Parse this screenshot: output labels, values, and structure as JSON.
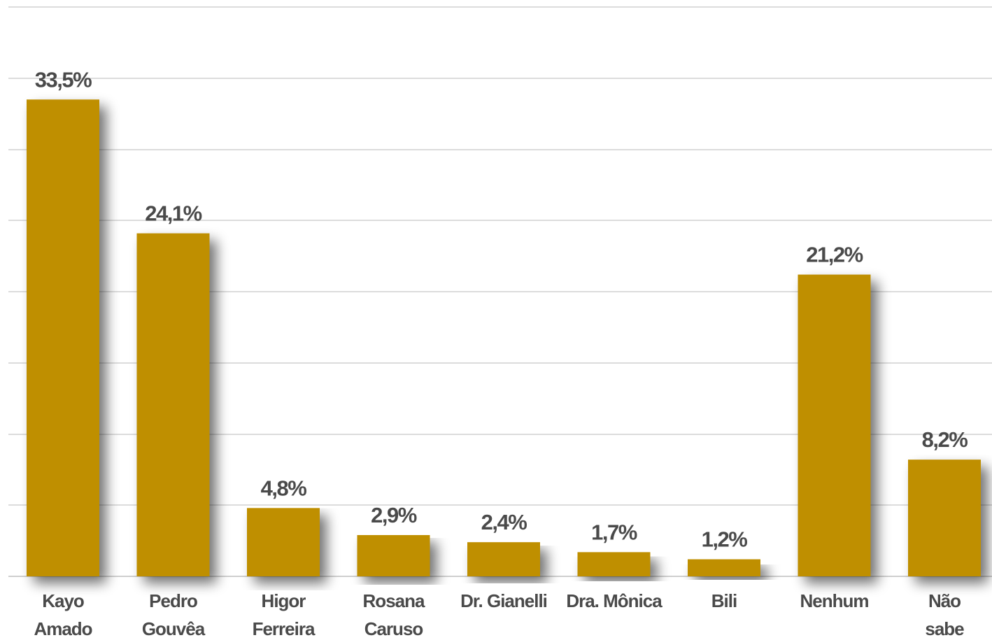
{
  "chart_data": {
    "type": "bar",
    "title": "",
    "xlabel": "",
    "ylabel": "",
    "categories": [
      [
        "Kayo",
        "Amado"
      ],
      [
        "Pedro",
        "Gouvêa"
      ],
      [
        "Higor",
        "Ferreira"
      ],
      [
        "Rosana",
        "Caruso"
      ],
      [
        "Dr. Gianelli"
      ],
      [
        "Dra. Mônica"
      ],
      [
        "Bili"
      ],
      [
        "Nenhum"
      ],
      [
        "Não",
        "sabe"
      ]
    ],
    "values": [
      33.5,
      24.1,
      4.8,
      2.9,
      2.4,
      1.7,
      1.2,
      21.2,
      8.2
    ],
    "value_labels": [
      "33,5%",
      "24,1%",
      "4,8%",
      "2,9%",
      "2,4%",
      "1,7%",
      "1,2%",
      "21,2%",
      "8,2%"
    ],
    "ylim": [
      0,
      40
    ],
    "grid": true,
    "legend": "none",
    "colors": {
      "bar": "#bf8f00",
      "text": "#4a4a4a",
      "grid": "#dcdcdc"
    }
  }
}
